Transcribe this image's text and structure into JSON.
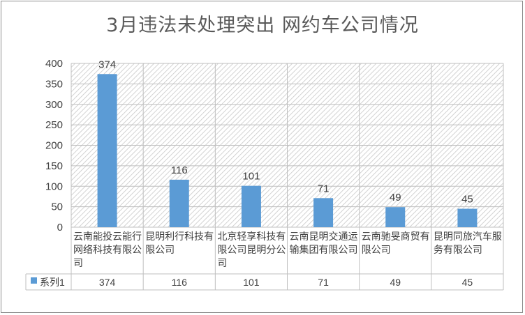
{
  "chart_data": {
    "type": "bar",
    "title": "3月违法未处理突出 网约车公司情况",
    "categories": [
      "云南能投云能行网络科技有限公司",
      "昆明利行科技有限公司",
      "北京轻享科技有限公司昆明分公司",
      "云南昆明交通运输集团有限公司",
      "云南驰旻商贸有限公司",
      "昆明同旅汽车服务有限公司"
    ],
    "series": [
      {
        "name": "系列1",
        "values": [
          374,
          116,
          101,
          71,
          49,
          45
        ]
      }
    ],
    "ylim": [
      0,
      400
    ],
    "yticks": [
      0,
      50,
      100,
      150,
      200,
      250,
      300,
      350,
      400
    ],
    "grid": true,
    "data_table": true,
    "colors": {
      "bar": "#5b9bd5",
      "grid": "#bfbfbf",
      "text": "#404040",
      "title": "#595959"
    }
  }
}
